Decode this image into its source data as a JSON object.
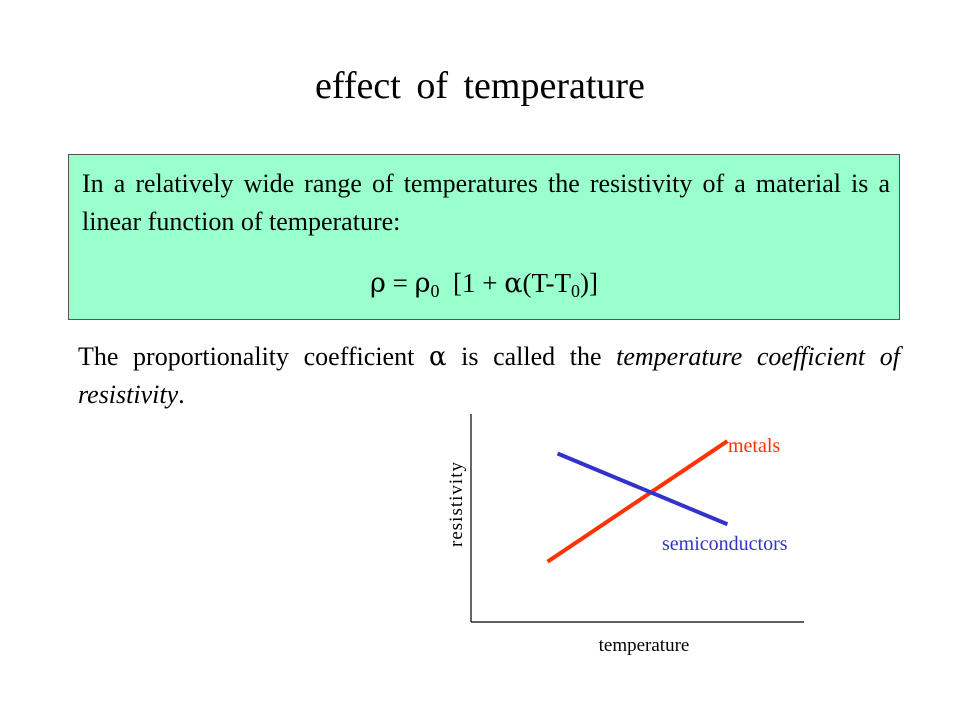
{
  "slide": {
    "title": "effect   of  temperature"
  },
  "definition_box": {
    "text": "In a relatively wide range of temperatures the resistivity of a material is a linear function of temperature:",
    "formula": {
      "rho": "ρ",
      "equals": " = ",
      "rho0": "ρ",
      "rho0_sub": "0",
      "open": "  [1 + ",
      "alpha": "α",
      "paren_left": "(T-T",
      "t0_sub": "0",
      "close": ")]"
    },
    "background_color": "#99ffcc"
  },
  "paragraph": {
    "text_1": "The proportionality coefficient ",
    "alpha": "α",
    "text_2": " is called the ",
    "emph": "temperature coefficient of resistivity",
    "text_3": "."
  },
  "chart_data": {
    "type": "line",
    "xlabel": "temperature",
    "ylabel": "resistivity",
    "x": [
      0,
      1
    ],
    "series": [
      {
        "name": "metals",
        "values": [
          0.29,
          0.87
        ],
        "color": "#ff3300",
        "x": [
          0.23,
          0.77
        ]
      },
      {
        "name": "semiconductors",
        "values": [
          0.81,
          0.47
        ],
        "color": "#3333cc",
        "x": [
          0.26,
          0.77
        ]
      }
    ],
    "xlim": [
      0,
      1
    ],
    "ylim": [
      0,
      1
    ],
    "grid": false,
    "legend": "inline labels",
    "axis_color": "#000000"
  }
}
